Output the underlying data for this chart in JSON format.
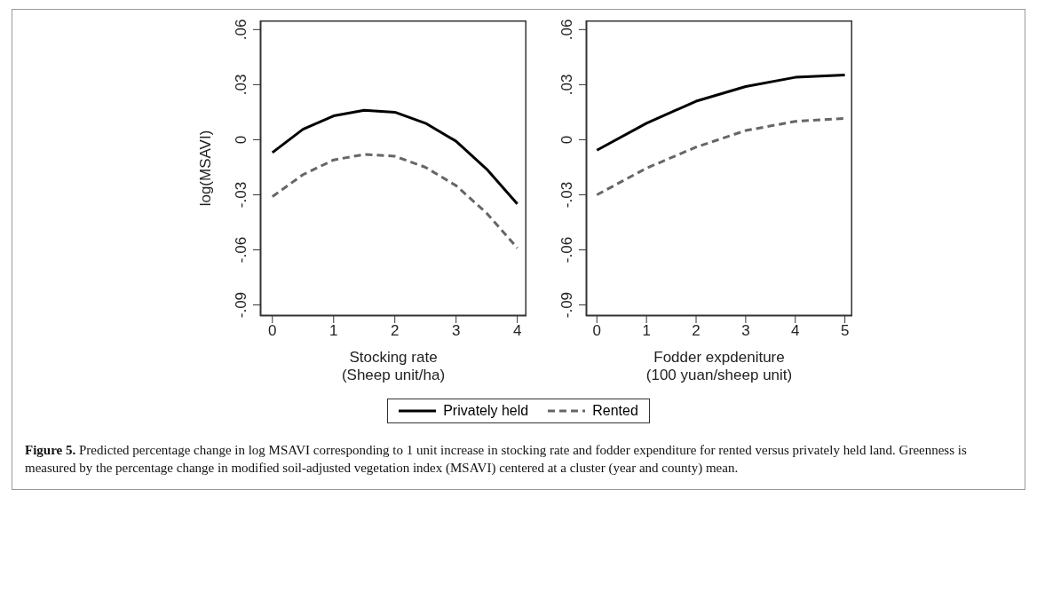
{
  "chart_data": [
    {
      "type": "line",
      "xlabel": "Stocking rate\n(Sheep unit/ha)",
      "ylabel": "log(MSAVI)",
      "x": [
        0,
        0.5,
        1,
        1.5,
        2,
        2.5,
        3,
        3.5,
        4
      ],
      "xlim": [
        -0.2,
        4.15
      ],
      "xticks": [
        0,
        1,
        2,
        3,
        4
      ],
      "ylim": [
        -0.096,
        0.065
      ],
      "yticks": [
        {
          "value": 0.06,
          "label": ".06"
        },
        {
          "value": 0.03,
          "label": ".03"
        },
        {
          "value": 0,
          "label": "0"
        },
        {
          "value": -0.03,
          "label": "-.03"
        },
        {
          "value": -0.06,
          "label": "-.06"
        },
        {
          "value": -0.09,
          "label": "-.09"
        }
      ],
      "grid": false,
      "marker": "none",
      "legend": "bottom",
      "series": [
        {
          "name": "Privately held",
          "color": "#000000",
          "line_style": "solid",
          "values": [
            -0.007,
            0.0057,
            0.013,
            0.016,
            0.015,
            0.009,
            -0.0008,
            -0.016,
            -0.035
          ]
        },
        {
          "name": "Rented",
          "color": "#666666",
          "line_style": "dashed",
          "values": [
            -0.031,
            -0.019,
            -0.011,
            -0.008,
            -0.009,
            -0.015,
            -0.025,
            -0.04,
            -0.059
          ]
        }
      ],
      "annotations": [
        "Figure 5. Predicted percentage change in log MSAVI corresponding to 1 unit increase in stocking rate and fodder expenditure for rented versus privately held land. Greenness is measured by the percentage change in modified soil-adjusted vegetation index (MSAVI) centered at a cluster (year and county) mean."
      ]
    },
    {
      "type": "line",
      "xlabel": "Fodder expdeniture\n(100 yuan/sheep unit)",
      "x": [
        0,
        1,
        2,
        3,
        4,
        5
      ],
      "xlim": [
        -0.22,
        5.15
      ],
      "xticks": [
        0,
        1,
        2,
        3,
        4,
        5
      ],
      "ylim": [
        -0.096,
        0.065
      ],
      "yticks": [
        {
          "value": 0.06,
          "label": ".06"
        },
        {
          "value": 0.03,
          "label": ".03"
        },
        {
          "value": 0,
          "label": "0"
        },
        {
          "value": -0.03,
          "label": "-.03"
        },
        {
          "value": -0.06,
          "label": "-.06"
        },
        {
          "value": -0.09,
          "label": "-.09"
        }
      ],
      "grid": false,
      "marker": "none",
      "series": [
        {
          "color": "#000000",
          "line_style": "solid",
          "values": [
            -0.0057,
            0.009,
            0.021,
            0.029,
            0.034,
            0.0353
          ]
        },
        {
          "color": "#666666",
          "line_style": "dashed",
          "values": [
            -0.03,
            -0.0155,
            -0.004,
            0.005,
            0.01,
            0.0116
          ]
        }
      ]
    }
  ]
}
